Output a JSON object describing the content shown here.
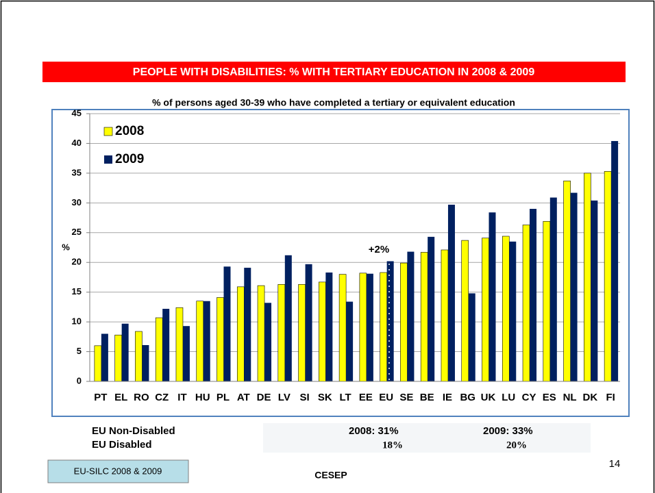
{
  "chart_data": {
    "type": "bar",
    "title": "PEOPLE WITH DISABILITIES: % WITH TERTIARY EDUCATION IN 2008 & 2009",
    "subtitle": "% of persons aged 30-39 who have completed a tertiary or equivalent education",
    "ylabel": "%",
    "annotation": "+2%",
    "categories": [
      "PT",
      "EL",
      "RO",
      "CZ",
      "IT",
      "HU",
      "PL",
      "AT",
      "DE",
      "LV",
      "SI",
      "SK",
      "LT",
      "EE",
      "EU",
      "SE",
      "BE",
      "IE",
      "BG",
      "UK",
      "LU",
      "CY",
      "ES",
      "NL",
      "DK",
      "FI"
    ],
    "series": [
      {
        "name": "2008",
        "color": "#ffff00",
        "values": [
          6.0,
          7.8,
          8.4,
          10.7,
          12.4,
          13.5,
          14.1,
          15.9,
          16.1,
          16.3,
          16.3,
          16.7,
          18.0,
          18.2,
          18.3,
          19.9,
          21.7,
          22.1,
          23.7,
          24.1,
          24.4,
          26.3,
          26.9,
          33.7,
          35.0,
          35.3
        ]
      },
      {
        "name": "2009",
        "color": "#002060",
        "values": [
          8.0,
          9.7,
          6.1,
          12.2,
          9.3,
          13.5,
          19.3,
          19.1,
          13.2,
          21.2,
          19.7,
          18.3,
          13.4,
          18.1,
          20.2,
          21.8,
          24.3,
          29.7,
          14.8,
          28.4,
          23.5,
          29.0,
          30.9,
          31.7,
          30.4,
          40.4
        ]
      }
    ],
    "ylim": [
      0,
      45
    ],
    "yticks": [
      0,
      5,
      10,
      15,
      20,
      25,
      30,
      35,
      40,
      45
    ],
    "grid": true,
    "legend": "upper left"
  },
  "slide": {
    "table": [
      [
        "EU Non-Disabled",
        "2008: 31%",
        "2009: 33%"
      ],
      [
        "EU Disabled",
        "18%",
        "20%"
      ]
    ],
    "source": "EU-SILC 2008 & 2009",
    "organization": "CESEP",
    "page_number": "14"
  }
}
